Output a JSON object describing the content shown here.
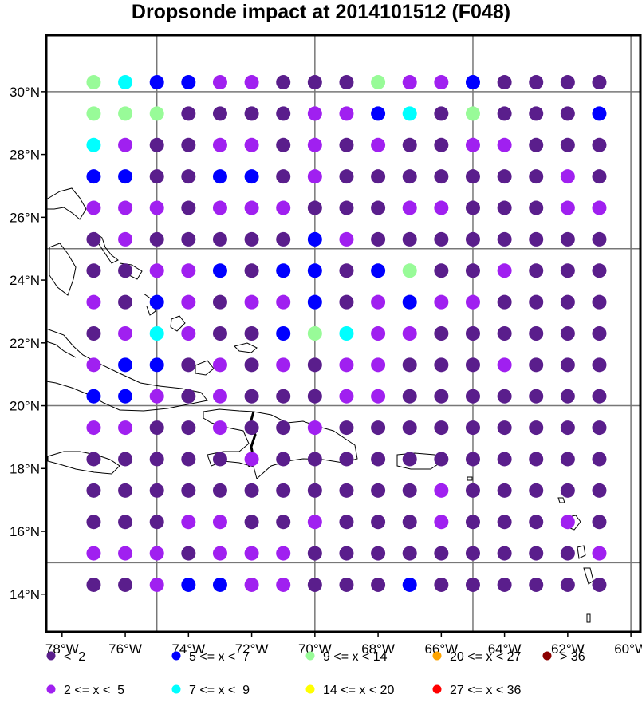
{
  "title": "Dropsonde impact at 2014101512 (F048)",
  "map": {
    "lon_range": [
      -78.5,
      -59.7
    ],
    "lat_range": [
      12.8,
      31.8
    ],
    "grid_lons": [
      -75,
      -70,
      -65,
      -60
    ],
    "grid_lats": [
      15,
      20,
      25,
      30
    ],
    "x_ticks": [
      "78°W",
      "76°W",
      "74°W",
      "72°W",
      "70°W",
      "68°W",
      "66°W",
      "64°W",
      "62°W",
      "60°W"
    ],
    "x_tick_values": [
      -78,
      -76,
      -74,
      -72,
      -70,
      -68,
      -66,
      -64,
      -62,
      -60
    ],
    "y_ticks": [
      "14°N",
      "16°N",
      "18°N",
      "20°N",
      "22°N",
      "24°N",
      "26°N",
      "28°N",
      "30°N"
    ],
    "y_tick_values": [
      14,
      16,
      18,
      20,
      22,
      24,
      26,
      28,
      30
    ]
  },
  "legend": [
    {
      "label": "<  2",
      "color": "#5a1e8c"
    },
    {
      "label": "2 <= x <  5",
      "color": "#a020f0"
    },
    {
      "label": "5 <= x <  7",
      "color": "#0000ff"
    },
    {
      "label": "7 <= x <  9",
      "color": "#00ffff"
    },
    {
      "label": "9 <= x < 14",
      "color": "#98fb98"
    },
    {
      "label": "14 <= x < 20",
      "color": "#ffff00"
    },
    {
      "label": "20 <= x < 27",
      "color": "#ffa500"
    },
    {
      "label": "27 <= x < 36",
      "color": "#ff0000"
    },
    {
      "label": "> 36",
      "color": "#8b0000"
    }
  ],
  "chart_data": {
    "type": "scatter",
    "lons": [
      -77,
      -76,
      -75,
      -74,
      -73,
      -72,
      -71,
      -70,
      -69,
      -68,
      -67,
      -66,
      -65,
      -64,
      -63,
      -62,
      -61
    ],
    "lats": [
      30.3,
      29.3,
      28.3,
      27.3,
      26.3,
      25.3,
      24.3,
      23.3,
      22.3,
      21.3,
      20.3,
      19.3,
      18.3,
      17.3,
      16.3,
      15.3,
      14.3
    ],
    "category_grid": [
      "PCBBVVDDDPVVBDDDD",
      "PPPDDDDVVBCDPDDDB",
      "CVDDVVDVDVDDVVDDD",
      "BBDDBBDVDDDDDDDVD",
      "VVVDVVVDDDVVDDDVV",
      "DVDDDDDBVDDDDDDDD",
      "DDVVBDBBDBPDDVDDD",
      "VDBVDVVBDVBVVDDDD",
      "DVCVDDBPCVVDDDDDD",
      "VBBDVDVDVVDDDVDDD",
      "BBVDVDDDVVDDDDDDD",
      "VVDDVDDVDDDDDDDDD",
      "DDDDDVDDDDDDDDDDD",
      "DDDDDDDDDDDVDDDDD",
      "DDDVVDDVDDDVDDDVD",
      "VVVDVVVDDDDDDDDDV",
      "DDVBBVVDDDBDDDDDD"
    ],
    "category_key": {
      "D": "<  2",
      "V": "2 <= x <  5",
      "B": "5 <= x <  7",
      "C": "7 <= x <  9",
      "P": "9 <= x < 14"
    }
  }
}
